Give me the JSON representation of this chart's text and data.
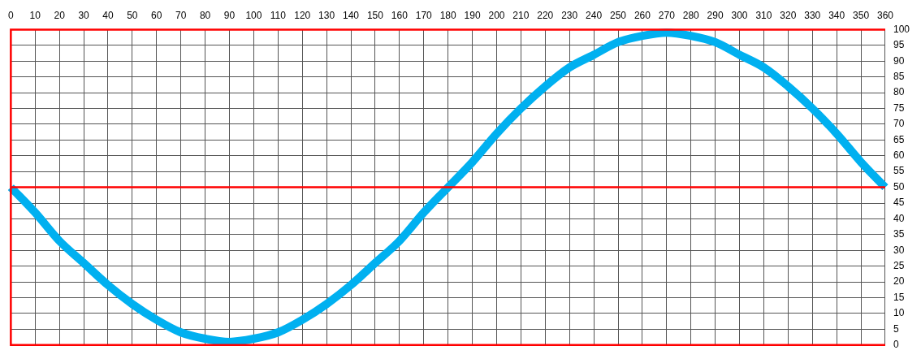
{
  "chart_data": {
    "type": "line",
    "x": [
      0,
      10,
      20,
      30,
      40,
      50,
      60,
      70,
      80,
      90,
      100,
      110,
      120,
      130,
      140,
      150,
      160,
      170,
      180,
      190,
      200,
      210,
      220,
      230,
      240,
      250,
      260,
      270,
      280,
      290,
      300,
      310,
      320,
      330,
      340,
      350,
      360
    ],
    "series": [
      {
        "color": "#00b0f0",
        "values": [
          50,
          42,
          33,
          26,
          19,
          13,
          8,
          4,
          2,
          1,
          2,
          4,
          8,
          13,
          19,
          26,
          33,
          42,
          50,
          58,
          67,
          75,
          82,
          88,
          92,
          96,
          98,
          99,
          98,
          96,
          92,
          88,
          82,
          75,
          67,
          58,
          50
        ]
      }
    ],
    "xlim": [
      0,
      360
    ],
    "xticks": [
      0,
      10,
      20,
      30,
      40,
      50,
      60,
      70,
      80,
      90,
      100,
      110,
      120,
      130,
      140,
      150,
      160,
      170,
      180,
      190,
      200,
      210,
      220,
      230,
      240,
      250,
      260,
      270,
      280,
      290,
      300,
      310,
      320,
      330,
      340,
      350,
      360
    ],
    "ylim": [
      0,
      100
    ],
    "yticks": [
      0,
      5,
      10,
      15,
      20,
      25,
      30,
      35,
      40,
      45,
      50,
      55,
      60,
      65,
      70,
      75,
      80,
      85,
      90,
      95,
      100
    ],
    "grid": true,
    "legend": false,
    "marker": "none",
    "line_style": "solid",
    "ref_lines": [
      {
        "axis": "y",
        "value": 50,
        "color": "#ff0000"
      }
    ]
  }
}
